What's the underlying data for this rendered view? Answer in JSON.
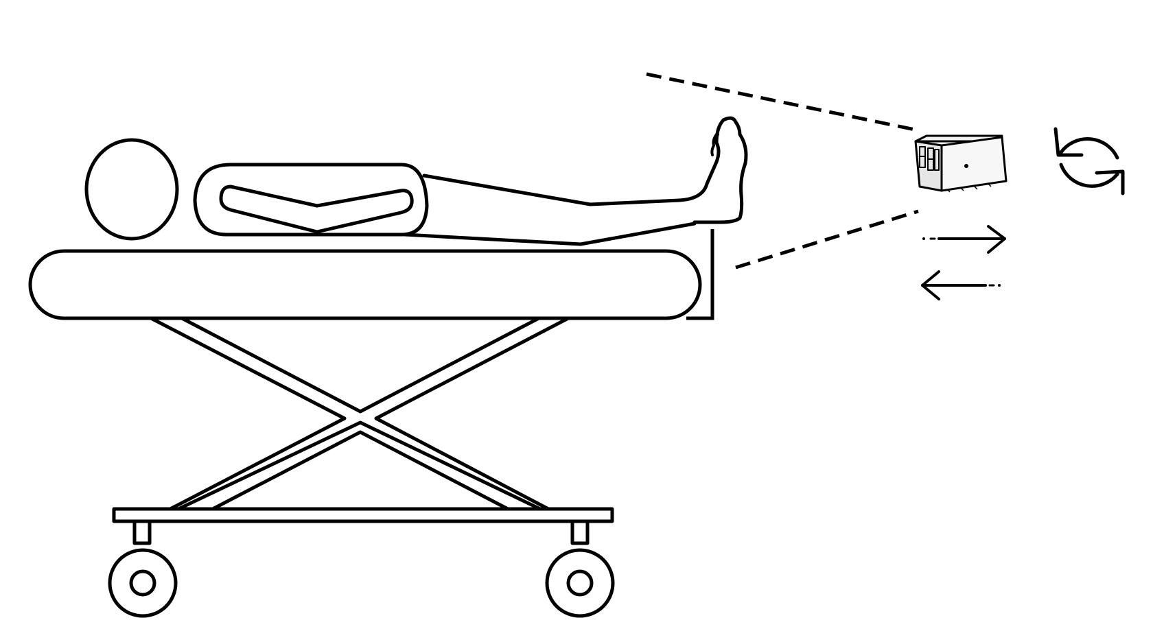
{
  "figure": {
    "background_color": "#ffffff",
    "line_color": "#000000",
    "components": {
      "stretcher": "hospital-stretcher",
      "patient": "supine-patient",
      "foot_support": "foot-support-plate",
      "sensor": "depth-camera-device",
      "motion": [
        "rotate-icon",
        "move-forward-arrow",
        "move-backward-arrow"
      ]
    }
  }
}
